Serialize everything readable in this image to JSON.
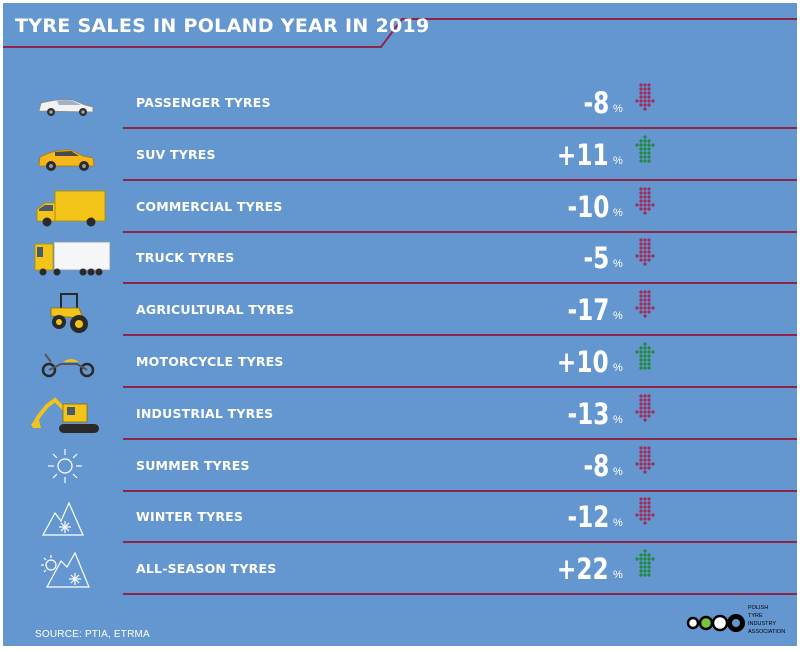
{
  "title": "TYRE SALES IN POLAND YEAR IN 2019",
  "source": "SOURCE: PTIA, ETRMA",
  "logo": {
    "name": "Polish Tyre Industry Association",
    "lines": [
      "POLISH",
      "TYRE",
      "INDUSTRY",
      "ASSOCIATION"
    ]
  },
  "colors": {
    "background": "#6497d0",
    "divider": "#8e2448",
    "decrease": "#a32a58",
    "increase": "#1e8a3a",
    "text": "#ffffff"
  },
  "percent_sign": "%",
  "chart_data": {
    "type": "table",
    "title": "TYRE SALES IN POLAND YEAR IN 2019",
    "unit": "%",
    "categories": [
      "PASSENGER TYRES",
      "SUV TYRES",
      "COMMERCIAL TYRES",
      "TRUCK TYRES",
      "AGRICULTURAL TYRES",
      "MOTORCYCLE TYRES",
      "INDUSTRIAL TYRES",
      "SUMMER TYRES",
      "WINTER TYRES",
      "ALL-SEASON TYRES"
    ],
    "values": [
      -8,
      11,
      -10,
      -5,
      -17,
      10,
      -13,
      -8,
      -12,
      22
    ],
    "display_values": [
      "-8",
      "+11",
      "-10",
      "-5",
      "-17",
      "+10",
      "-13",
      "-8",
      "-12",
      "+22"
    ],
    "icons": [
      "passenger-car-icon",
      "suv-icon",
      "delivery-van-icon",
      "truck-icon",
      "tractor-icon",
      "motorcycle-icon",
      "excavator-icon",
      "sun-icon",
      "snow-mountain-icon",
      "sun-snow-mountain-icon"
    ],
    "trend": [
      "down",
      "up",
      "down",
      "down",
      "down",
      "up",
      "down",
      "down",
      "down",
      "up"
    ]
  }
}
